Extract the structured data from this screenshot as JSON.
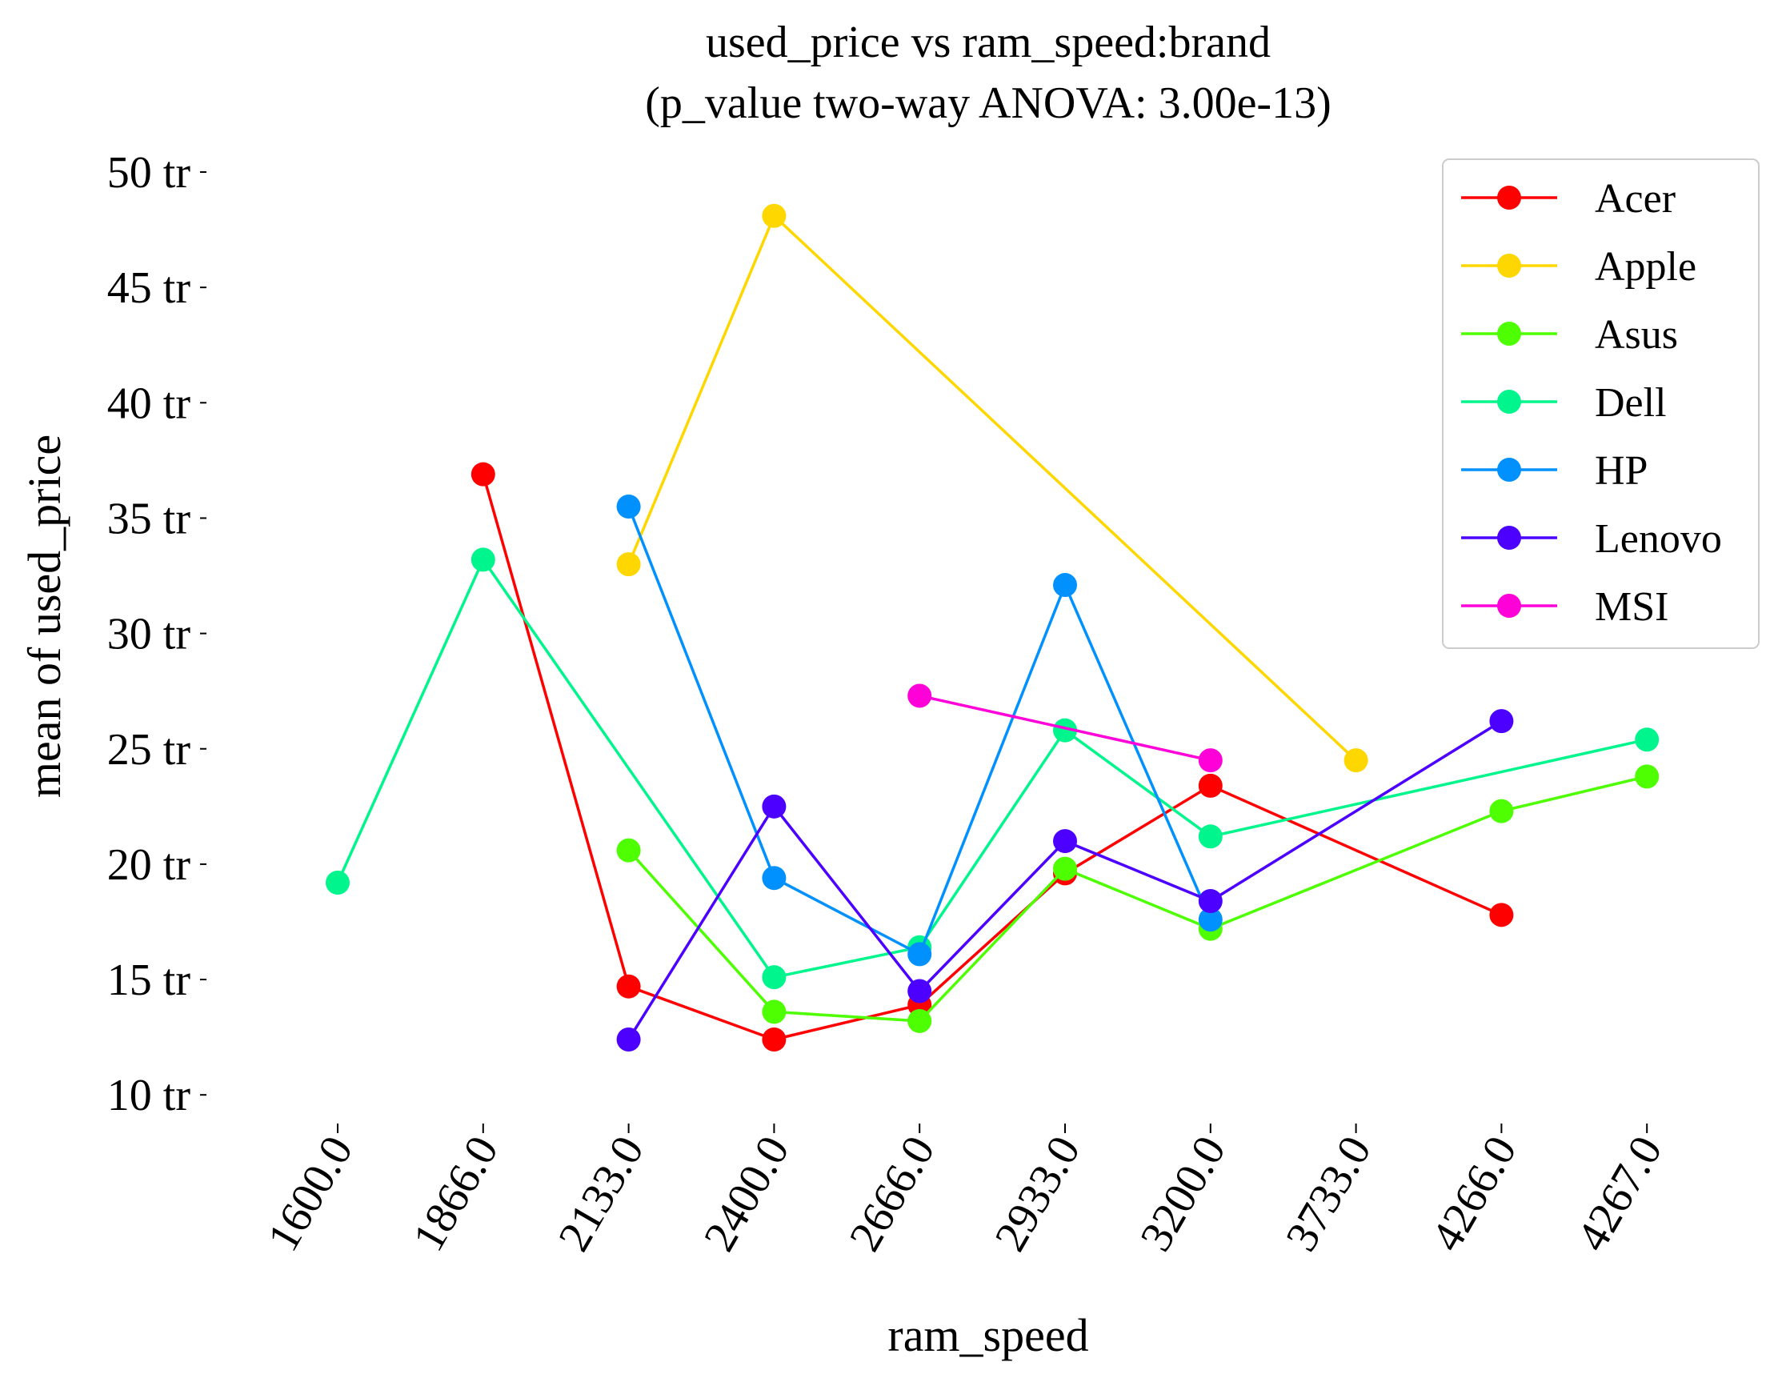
{
  "chart_data": {
    "type": "line",
    "title": "used_price vs ram_speed:brand",
    "subtitle": "(p_value two-way ANOVA: 3.00e-13)",
    "xlabel": "ram_speed",
    "ylabel": "mean of used_price",
    "categories": [
      "1600.0",
      "1866.0",
      "2133.0",
      "2400.0",
      "2666.0",
      "2933.0",
      "3200.0",
      "3733.0",
      "4266.0",
      "4267.0"
    ],
    "ylim": [
      9,
      50
    ],
    "yticks": [
      {
        "value": 10,
        "label": "10 tr"
      },
      {
        "value": 15,
        "label": "15 tr"
      },
      {
        "value": 20,
        "label": "20 tr"
      },
      {
        "value": 25,
        "label": "25 tr"
      },
      {
        "value": 30,
        "label": "30 tr"
      },
      {
        "value": 35,
        "label": "35 tr"
      },
      {
        "value": 40,
        "label": "40 tr"
      },
      {
        "value": 45,
        "label": "45 tr"
      },
      {
        "value": 50,
        "label": "50 tr"
      }
    ],
    "grid": false,
    "legend_position": "top-right",
    "series": [
      {
        "name": "Acer",
        "color": "#ff0000",
        "values": [
          null,
          36.9,
          14.7,
          12.4,
          13.9,
          19.6,
          23.4,
          null,
          17.8,
          null
        ]
      },
      {
        "name": "Apple",
        "color": "#ffd700",
        "values": [
          null,
          null,
          33.0,
          48.1,
          null,
          null,
          null,
          24.5,
          null,
          null
        ]
      },
      {
        "name": "Asus",
        "color": "#4dff00",
        "values": [
          null,
          null,
          20.6,
          13.6,
          13.2,
          19.8,
          17.2,
          null,
          22.3,
          23.8
        ]
      },
      {
        "name": "Dell",
        "color": "#00f58c",
        "values": [
          19.2,
          33.2,
          null,
          15.1,
          16.4,
          25.8,
          21.2,
          null,
          null,
          25.4
        ]
      },
      {
        "name": "HP",
        "color": "#0091ff",
        "values": [
          null,
          null,
          35.5,
          19.4,
          16.1,
          32.1,
          17.6,
          null,
          null,
          null
        ]
      },
      {
        "name": "Lenovo",
        "color": "#4c00ff",
        "values": [
          null,
          null,
          12.4,
          22.5,
          14.5,
          21.0,
          18.4,
          null,
          26.2,
          null
        ]
      },
      {
        "name": "MSI",
        "color": "#ff00d9",
        "values": [
          null,
          null,
          null,
          null,
          27.3,
          null,
          24.5,
          null,
          null,
          null
        ]
      }
    ]
  }
}
